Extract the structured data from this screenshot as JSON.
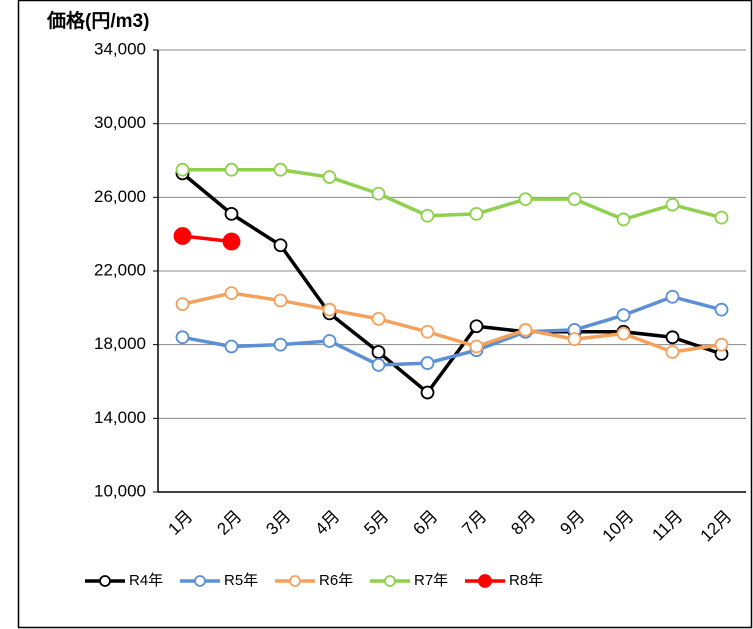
{
  "chart_data": {
    "type": "line",
    "title": "価格(円/m3)",
    "categories": [
      "1月",
      "2月",
      "3月",
      "4月",
      "5月",
      "6月",
      "7月",
      "8月",
      "9月",
      "10月",
      "11月",
      "12月"
    ],
    "series": [
      {
        "name": "R4年",
        "color": "#000000",
        "values": [
          27300,
          25100,
          23400,
          19700,
          17600,
          15400,
          19000,
          18700,
          18700,
          18700,
          18400,
          17500
        ]
      },
      {
        "name": "R5年",
        "color": "#5b8fd6",
        "values": [
          18400,
          17900,
          18000,
          18200,
          16900,
          17000,
          17700,
          18700,
          18800,
          19600,
          20600,
          19900
        ]
      },
      {
        "name": "R6年",
        "color": "#f4a15d",
        "values": [
          20200,
          20800,
          20400,
          19900,
          19400,
          18700,
          17900,
          18800,
          18300,
          18600,
          17600,
          18000
        ]
      },
      {
        "name": "R7年",
        "color": "#8fd14f",
        "values": [
          27500,
          27500,
          27500,
          27100,
          26200,
          25000,
          25100,
          25900,
          25900,
          24800,
          25600,
          24900
        ]
      },
      {
        "name": "R8年",
        "color": "#ff0000",
        "values": [
          23900,
          23600,
          null,
          null,
          null,
          null,
          null,
          null,
          null,
          null,
          null,
          null
        ]
      }
    ],
    "ylim": [
      10000,
      34000
    ],
    "yticks": [
      {
        "value": 10000,
        "label": "10,000"
      },
      {
        "value": 14000,
        "label": "14,000"
      },
      {
        "value": 18000,
        "label": "18,000"
      },
      {
        "value": 22000,
        "label": "22,000"
      },
      {
        "value": 26000,
        "label": "26,000"
      },
      {
        "value": 30000,
        "label": "30,000"
      },
      {
        "value": 34000,
        "label": "34,000"
      }
    ],
    "grid": true
  }
}
